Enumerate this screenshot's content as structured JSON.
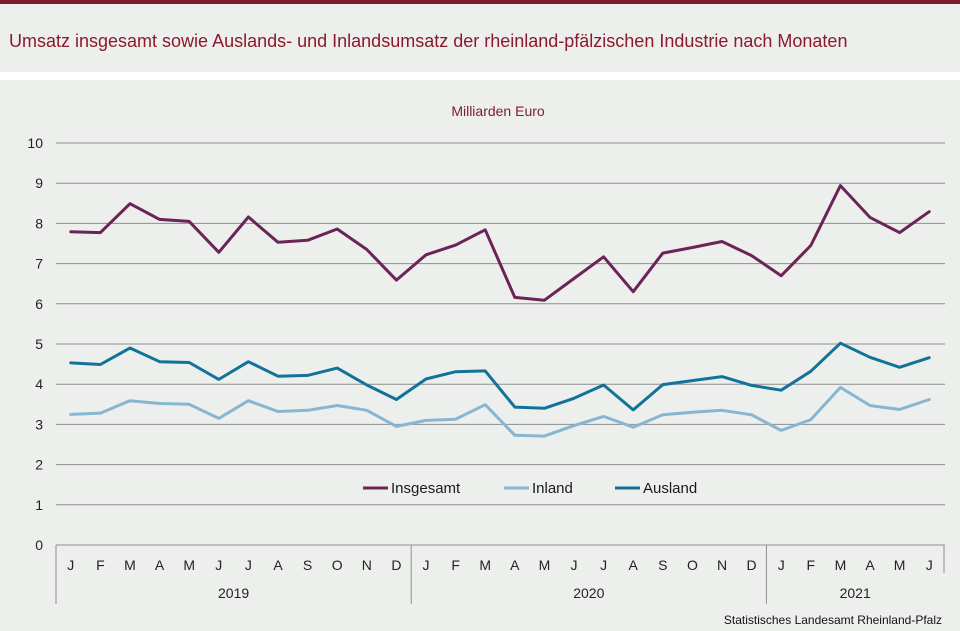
{
  "title": "Umsatz insgesamt sowie Auslands- und Inlandsumsatz der rheinland-pfälzischen Industrie nach Monaten",
  "source": "Statistisches Landesamt Rheinland-Pfalz",
  "colors": {
    "Insgesamt": "#6b2457",
    "Inland": "#86b6d2",
    "Ausland": "#13729a",
    "title": "#8a1a2d",
    "background": "#edefed",
    "grid": "#8e8e8e"
  },
  "chart_data": {
    "type": "line",
    "unit_label": "Milliarden Euro",
    "ylim": [
      0,
      10
    ],
    "yticks": [
      0,
      1,
      2,
      3,
      4,
      5,
      6,
      7,
      8,
      9,
      10
    ],
    "grid": true,
    "legend_position": "center-bottom",
    "month_labels": [
      "J",
      "F",
      "M",
      "A",
      "M",
      "J",
      "J",
      "A",
      "S",
      "O",
      "N",
      "D",
      "J",
      "F",
      "M",
      "A",
      "M",
      "J",
      "J",
      "A",
      "S",
      "O",
      "N",
      "D",
      "J",
      "F",
      "M",
      "A",
      "M",
      "J"
    ],
    "years": [
      {
        "label": "2019",
        "months": 12
      },
      {
        "label": "2020",
        "months": 12
      },
      {
        "label": "2021",
        "months": 6
      }
    ],
    "series": [
      {
        "name": "Insgesamt",
        "values": [
          7.79,
          7.77,
          8.49,
          8.1,
          8.05,
          7.28,
          8.16,
          7.53,
          7.58,
          7.86,
          7.35,
          6.59,
          7.22,
          7.46,
          7.84,
          6.16,
          6.09,
          6.63,
          7.17,
          6.3,
          7.26,
          7.4,
          7.55,
          7.2,
          6.7,
          7.45,
          8.94,
          8.15,
          7.77,
          8.29
        ]
      },
      {
        "name": "Inland",
        "values": [
          3.25,
          3.28,
          3.59,
          3.52,
          3.5,
          3.15,
          3.59,
          3.32,
          3.35,
          3.47,
          3.35,
          2.95,
          3.1,
          3.13,
          3.49,
          2.73,
          2.71,
          2.97,
          3.2,
          2.93,
          3.24,
          3.3,
          3.35,
          3.24,
          2.85,
          3.12,
          3.92,
          3.47,
          3.37,
          3.62
        ]
      },
      {
        "name": "Ausland",
        "values": [
          4.53,
          4.49,
          4.9,
          4.56,
          4.54,
          4.12,
          4.56,
          4.2,
          4.22,
          4.4,
          3.98,
          3.62,
          4.13,
          4.31,
          4.33,
          3.43,
          3.4,
          3.65,
          3.98,
          3.36,
          3.99,
          4.09,
          4.19,
          3.97,
          3.85,
          4.32,
          5.02,
          4.67,
          4.42,
          4.66
        ]
      }
    ]
  }
}
